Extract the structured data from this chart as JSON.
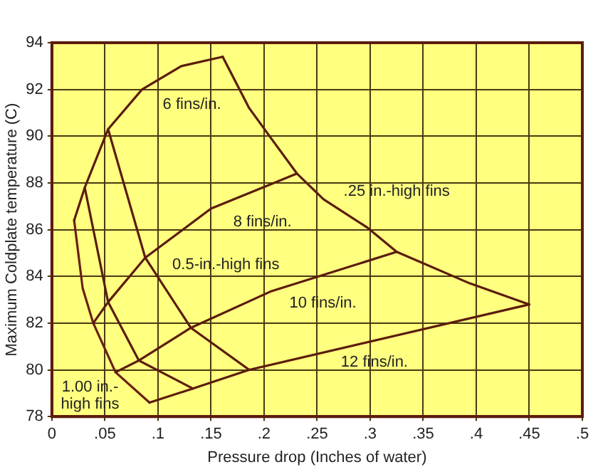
{
  "chart_data": {
    "type": "line",
    "xlabel": "Pressure drop (Inches of water)",
    "ylabel": "Maximum Coldplate temperature (C)",
    "xlim": [
      0,
      0.5
    ],
    "xticks": [
      0,
      {
        "value": 0.05,
        "label": ".05"
      },
      {
        "value": 0.1,
        "label": ".1"
      },
      {
        "value": 0.15,
        "label": ".15"
      },
      {
        "value": 0.2,
        "label": ".2"
      },
      {
        "value": 0.25,
        "label": ".25"
      },
      {
        "value": 0.3,
        "label": ".3"
      },
      {
        "value": 0.35,
        "label": ".35"
      },
      {
        "value": 0.4,
        "label": ".4"
      },
      {
        "value": 0.45,
        "label": ".45"
      },
      {
        "value": 0.5,
        "label": ".5"
      }
    ],
    "ylim": [
      78,
      94
    ],
    "yticks": [
      78,
      80,
      82,
      84,
      86,
      88,
      90,
      92,
      94
    ],
    "grid": true,
    "marker": "none",
    "line_style": "solid",
    "series": [
      {
        "name": "6 fins/in.",
        "color": "#5c1c0c",
        "x": [
          0.021,
          0.031,
          0.053,
          0.085,
          0.122,
          0.161
        ],
        "values": [
          86.4,
          87.8,
          90.3,
          92.0,
          93.0,
          93.4
        ]
      },
      {
        "name": "8 fins/in.",
        "color": "#5c1c0c",
        "x": [
          0.039,
          0.053,
          0.088,
          0.15,
          0.231
        ],
        "values": [
          82.0,
          82.9,
          84.8,
          86.9,
          88.4
        ]
      },
      {
        "name": "10 fins/in.",
        "color": "#5c1c0c",
        "x": [
          0.06,
          0.082,
          0.131,
          0.206,
          0.325
        ],
        "values": [
          79.9,
          80.4,
          81.8,
          83.35,
          85.05
        ]
      },
      {
        "name": "12 fins/in.",
        "color": "#5c1c0c",
        "x": [
          0.092,
          0.133,
          0.186,
          0.45
        ],
        "values": [
          78.6,
          79.2,
          80.0,
          82.8
        ]
      },
      {
        "name": "1.00 in.-\nhigh fins",
        "color": "#6a2010",
        "x": [
          0.021,
          0.029,
          0.039,
          0.06,
          0.092
        ],
        "values": [
          86.4,
          83.5,
          82.0,
          79.9,
          78.6
        ]
      },
      {
        "color": "#5c1c0c",
        "x": [
          0.031,
          0.053,
          0.082,
          0.133
        ],
        "values": [
          87.8,
          82.9,
          80.4,
          79.2
        ]
      },
      {
        "name": "0.5-in.-high fins",
        "color": "#5c1c0c",
        "x": [
          0.053,
          0.088,
          0.131,
          0.186
        ],
        "values": [
          90.3,
          84.8,
          81.8,
          80.0
        ]
      },
      {
        "name": ".25 in.-high fins",
        "color": "#5c1c0c",
        "x": [
          0.161,
          0.186,
          0.21,
          0.231,
          0.256,
          0.297,
          0.325,
          0.394,
          0.45
        ],
        "values": [
          93.4,
          91.2,
          89.7,
          88.4,
          87.3,
          86.1,
          85.05,
          83.7,
          82.8
        ]
      }
    ]
  }
}
